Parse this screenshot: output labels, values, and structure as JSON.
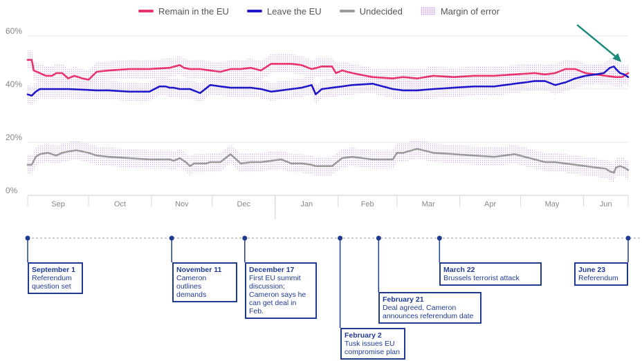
{
  "legend": {
    "remain": "Remain in the EU",
    "leave": "Leave the EU",
    "undecided": "Undecided",
    "margin": "Margin of error"
  },
  "colors": {
    "remain": "#e8336d",
    "leave": "#1f17c8",
    "undecided": "#9b9b9b",
    "margin": "#c9a0e8",
    "annotation_arrow": "#1b8a7a",
    "timeline": "#1f3a93",
    "grid": "#e4e4e4"
  },
  "chart_data": {
    "type": "line",
    "title": "",
    "xlabel": "",
    "ylabel": "",
    "ylim": [
      0,
      60
    ],
    "yticks": [
      0,
      20,
      40,
      60
    ],
    "ytick_labels": [
      "0%",
      "20%",
      "40%",
      "60%"
    ],
    "months": [
      "Sep",
      "Oct",
      "Nov",
      "Dec",
      "Jan",
      "Feb",
      "Mar",
      "Apr",
      "May",
      "Jun"
    ],
    "x_unit": "days since Sep 1, 2015",
    "xlim": [
      0,
      296
    ],
    "grid": true,
    "legend_position": "top",
    "annotations": [
      {
        "type": "arrow",
        "target": "Leave overtakes Remain",
        "x": 292,
        "y": 47
      }
    ],
    "series": [
      {
        "name": "Remain in the EU",
        "x": [
          0,
          2,
          3,
          6,
          9,
          12,
          14,
          17,
          20,
          23,
          27,
          30,
          34,
          40,
          50,
          60,
          70,
          75,
          77,
          80,
          85,
          90,
          95,
          100,
          105,
          110,
          115,
          120,
          125,
          130,
          135,
          140,
          145,
          150,
          152,
          155,
          160,
          170,
          180,
          185,
          192,
          200,
          210,
          220,
          230,
          240,
          250,
          255,
          260,
          265,
          270,
          275,
          280,
          285,
          290,
          293,
          296
        ],
        "values": [
          51,
          51,
          47,
          46,
          45,
          45,
          46,
          46,
          44,
          45,
          44,
          43.5,
          46.5,
          47,
          47.5,
          47.5,
          48,
          49,
          48,
          47.5,
          47.5,
          47,
          46.5,
          47.5,
          47.5,
          48,
          47,
          49.5,
          49.5,
          49.5,
          49,
          47.5,
          48.5,
          48.5,
          46,
          47,
          46,
          44.5,
          44,
          44.5,
          44,
          45,
          44.5,
          45,
          45,
          45.5,
          46,
          45.5,
          46,
          47.5,
          47.5,
          46,
          45.5,
          45,
          44.5,
          44.5,
          46
        ]
      },
      {
        "name": "Leave the EU",
        "x": [
          0,
          2,
          4,
          6,
          10,
          20,
          34,
          40,
          50,
          60,
          65,
          68,
          70,
          72,
          75,
          80,
          85,
          90,
          95,
          100,
          105,
          110,
          115,
          120,
          125,
          130,
          135,
          140,
          142,
          145,
          150,
          155,
          160,
          170,
          180,
          185,
          192,
          200,
          210,
          220,
          230,
          240,
          245,
          250,
          255,
          260,
          265,
          270,
          275,
          280,
          284,
          287,
          289,
          290,
          292,
          294,
          296
        ],
        "values": [
          38,
          37.5,
          39,
          40,
          40,
          40,
          39.5,
          39.5,
          39,
          39,
          41,
          41,
          40.5,
          40.5,
          40,
          40,
          38.5,
          41.5,
          41,
          40.5,
          40.5,
          40.5,
          40,
          39,
          39.5,
          40,
          40.5,
          41.5,
          38,
          40,
          40.5,
          41,
          41.5,
          42,
          40,
          39.5,
          39.5,
          40,
          40.5,
          41,
          41,
          42,
          42.5,
          43,
          43,
          41.5,
          42.5,
          44,
          45,
          45.5,
          46,
          48,
          48.5,
          47.5,
          46,
          45.5,
          44.5
        ]
      },
      {
        "name": "Undecided",
        "x": [
          0,
          2,
          4,
          6,
          10,
          14,
          17,
          20,
          24,
          27,
          30,
          34,
          40,
          50,
          60,
          70,
          72,
          75,
          78,
          80,
          82,
          85,
          88,
          90,
          95,
          100,
          105,
          110,
          115,
          120,
          125,
          130,
          135,
          140,
          142,
          145,
          150,
          155,
          160,
          170,
          180,
          182,
          185,
          192,
          200,
          210,
          220,
          230,
          240,
          245,
          250,
          255,
          260,
          265,
          270,
          275,
          280,
          285,
          287,
          289,
          290,
          292,
          294,
          296
        ],
        "values": [
          11.5,
          11.5,
          14.5,
          15.5,
          16,
          15,
          16,
          16.5,
          17,
          16.5,
          16,
          15,
          14.5,
          14,
          13.5,
          13.5,
          13,
          14,
          12.5,
          11,
          12,
          12,
          12,
          12.5,
          12.5,
          15.5,
          12,
          12.5,
          12.5,
          13,
          13.5,
          12,
          12,
          11.5,
          11,
          11,
          11,
          14,
          14.5,
          13.5,
          13.5,
          16,
          16,
          17.5,
          16,
          15.5,
          15,
          14.5,
          15.5,
          14.5,
          13.5,
          12.5,
          12.5,
          12,
          11.5,
          11,
          10.5,
          10,
          9,
          8.5,
          10.5,
          11,
          10.5,
          9.5
        ]
      }
    ]
  },
  "timeline": [
    {
      "date": "September 1",
      "desc": "Referendum question set",
      "day": 0
    },
    {
      "date": "November 11",
      "desc": "Cameron outlines demands",
      "day": 71
    },
    {
      "date": "December 17",
      "desc": "First EU summit discussion; Cameron says he can get deal in Feb.",
      "day": 107
    },
    {
      "date": "February 2",
      "desc": "Tusk issues EU compromise plan",
      "day": 154
    },
    {
      "date": "February 21",
      "desc": "Deal agreed, Cameron announces referendum date",
      "day": 173
    },
    {
      "date": "March 22",
      "desc": "Brussels terrorist attack",
      "day": 203
    },
    {
      "date": "June 23",
      "desc": "Referendum",
      "day": 296
    }
  ]
}
